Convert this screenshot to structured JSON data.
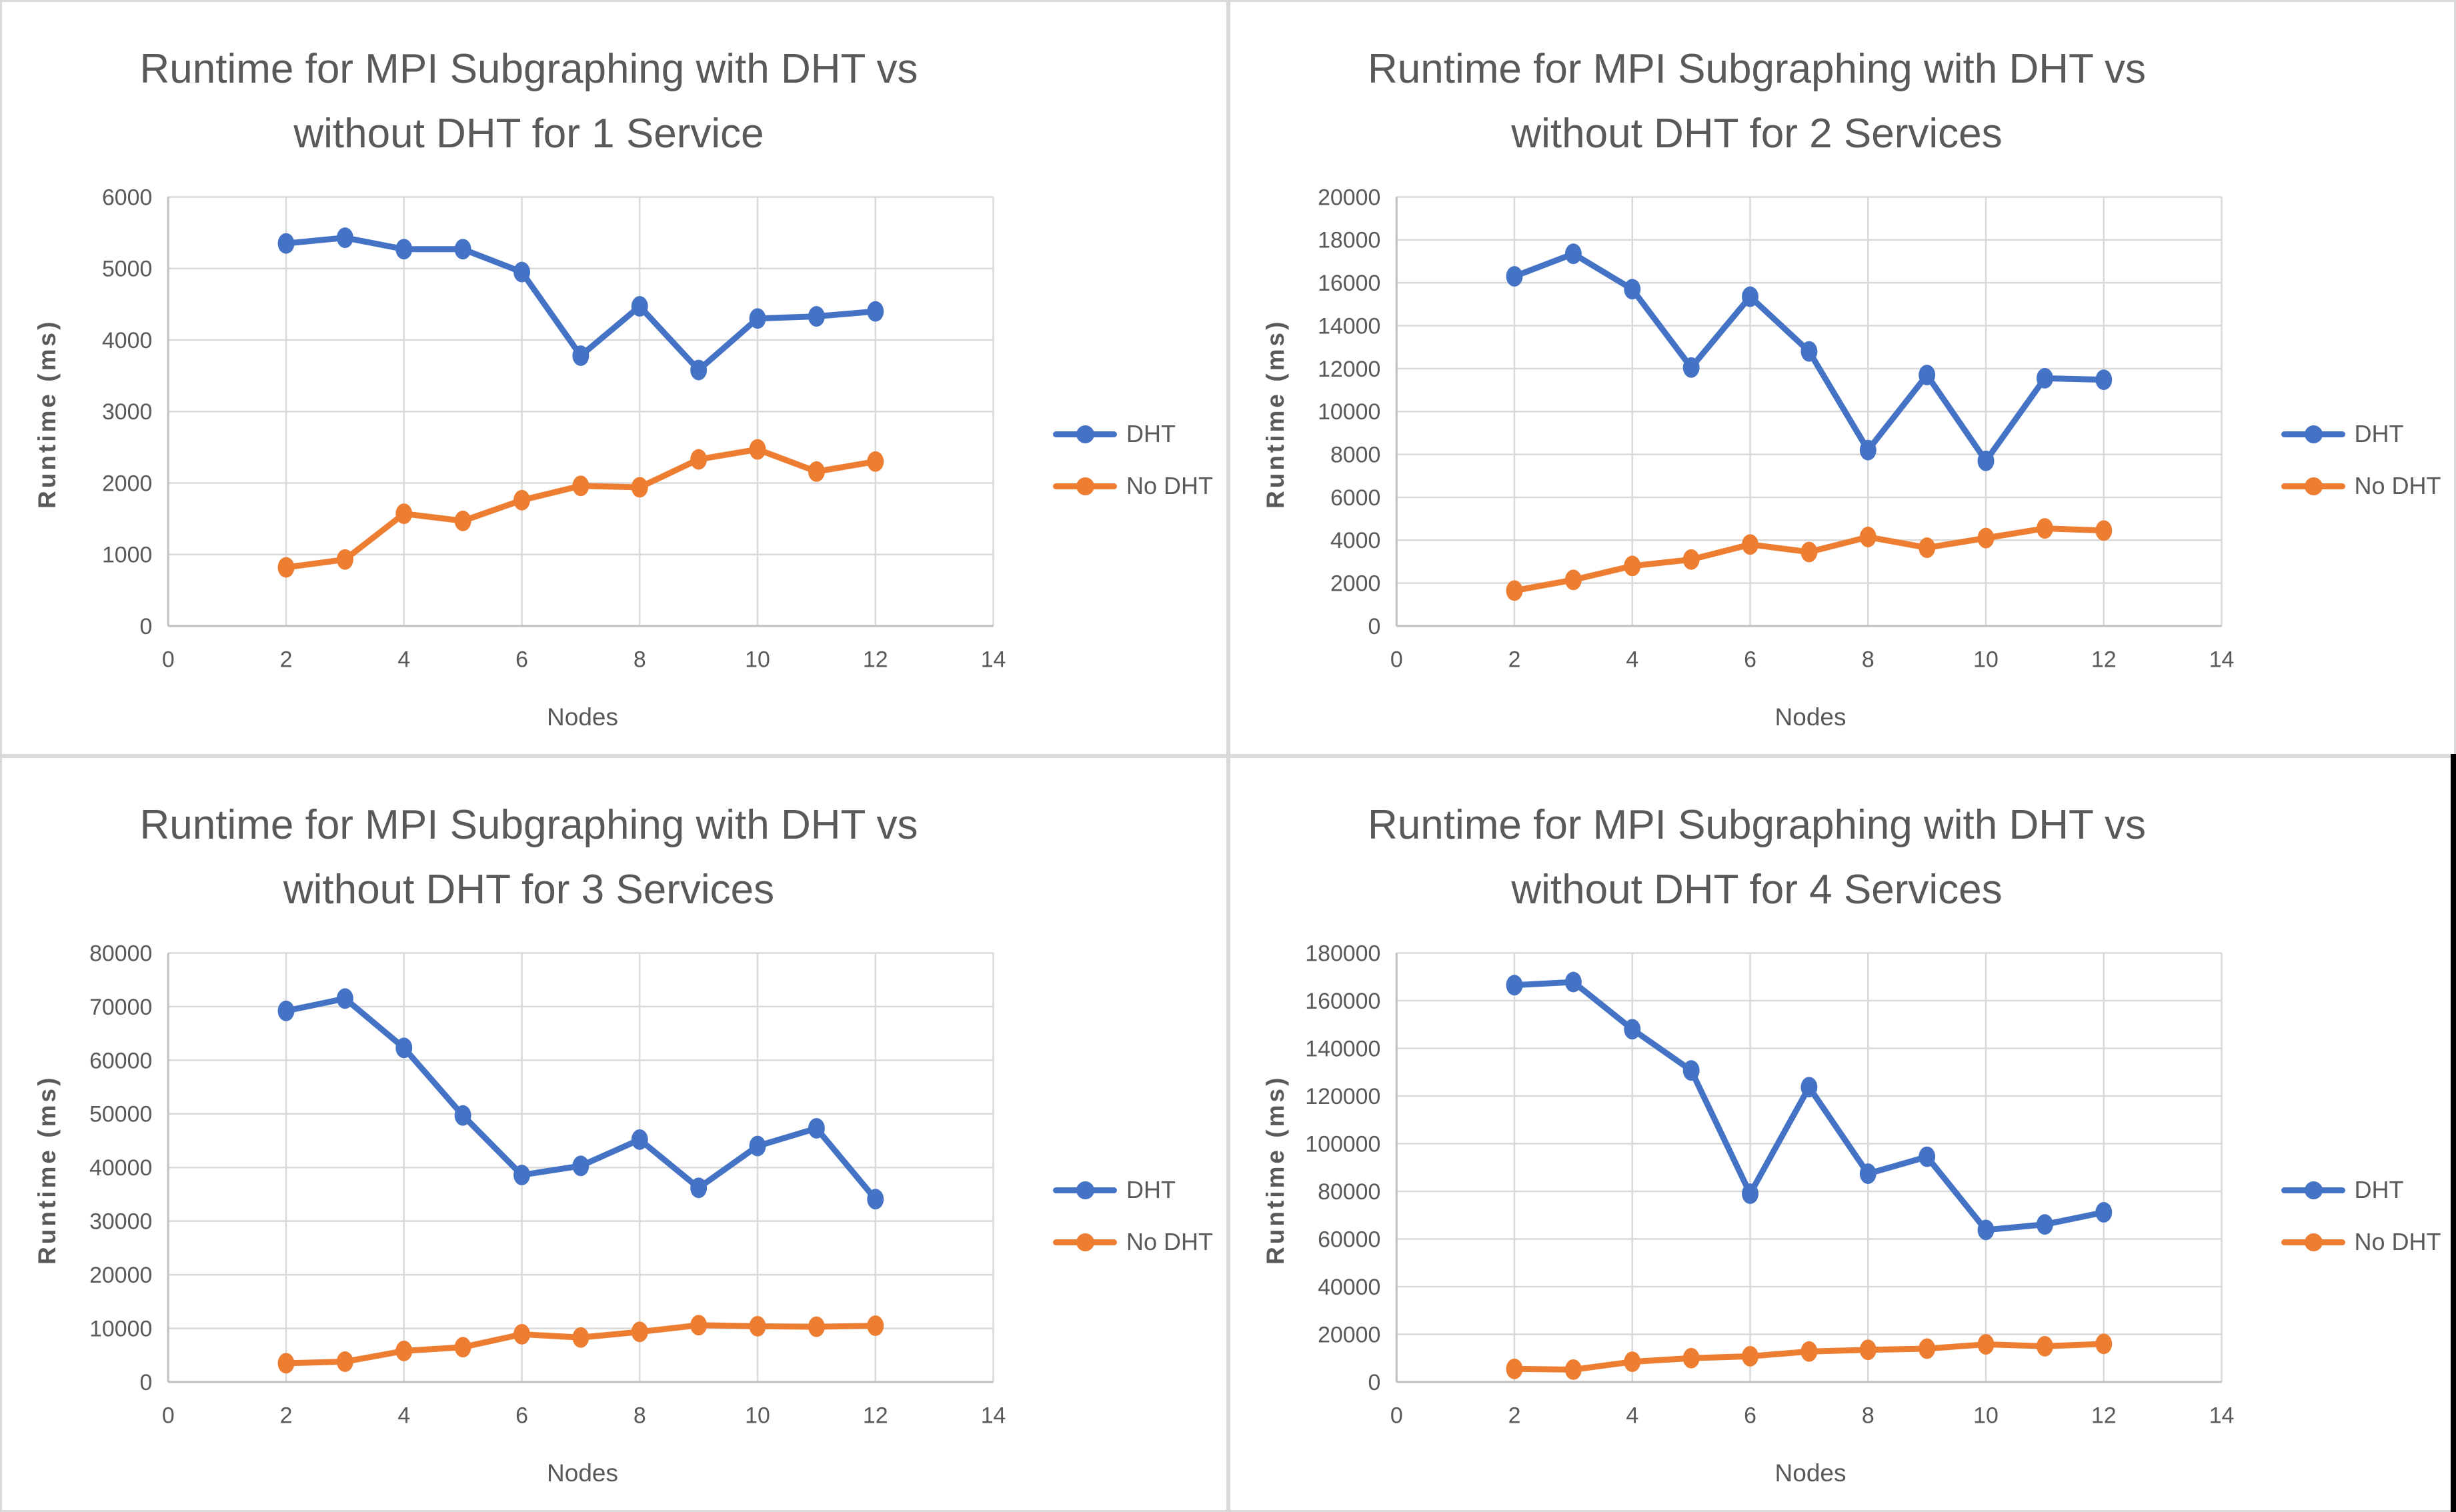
{
  "palette": {
    "dht_blue": "#4472C4",
    "no_dht_orange": "#ED7D31",
    "grid_color": "#D9D9D9",
    "axis_color": "#BFBFBF",
    "text_color": "#595959",
    "cell_border": "#D9D9D9",
    "background": "#FFFFFF",
    "edge_strip": "#000000"
  },
  "chart_data": [
    {
      "type": "line",
      "title": "Runtime for MPI Subgraphing with DHT vs without DHT for 1 Service",
      "title_line1": "Runtime for MPI Subgraphing with DHT vs",
      "title_line2": "without DHT for 1 Service",
      "xlabel": "Nodes",
      "ylabel": "Runtime (ms)",
      "xlim": [
        0,
        14
      ],
      "x_tick_step": 2,
      "ylim": [
        0,
        6000
      ],
      "y_tick_step": 1000,
      "grid": true,
      "legend_position": "right",
      "x": [
        2,
        3,
        4,
        5,
        6,
        7,
        8,
        9,
        10,
        11,
        12
      ],
      "series": [
        {
          "name": "DHT",
          "color": "#4472C4",
          "values": [
            5350,
            5430,
            5270,
            5270,
            4950,
            3780,
            4470,
            3580,
            4300,
            4330,
            4400
          ]
        },
        {
          "name": "No DHT",
          "color": "#ED7D31",
          "values": [
            820,
            930,
            1570,
            1470,
            1760,
            1960,
            1940,
            2330,
            2470,
            2160,
            2300
          ]
        }
      ]
    },
    {
      "type": "line",
      "title": "Runtime for MPI Subgraphing with DHT vs without DHT for 2 Services",
      "title_line1": "Runtime for MPI Subgraphing with DHT vs",
      "title_line2": "without DHT for 2 Services",
      "xlabel": "Nodes",
      "ylabel": "Runtime (ms)",
      "xlim": [
        0,
        14
      ],
      "x_tick_step": 2,
      "ylim": [
        0,
        20000
      ],
      "y_tick_step": 2000,
      "grid": true,
      "legend_position": "right",
      "x": [
        2,
        3,
        4,
        5,
        6,
        7,
        8,
        9,
        10,
        11,
        12
      ],
      "series": [
        {
          "name": "DHT",
          "color": "#4472C4",
          "values": [
            16300,
            17350,
            15700,
            12050,
            15350,
            12800,
            8200,
            11700,
            7700,
            11550,
            11480
          ]
        },
        {
          "name": "No DHT",
          "color": "#ED7D31",
          "values": [
            1650,
            2150,
            2800,
            3100,
            3800,
            3450,
            4150,
            3650,
            4100,
            4550,
            4450
          ]
        }
      ]
    },
    {
      "type": "line",
      "title": "Runtime for MPI Subgraphing with DHT vs without DHT for 3 Services",
      "title_line1": "Runtime for MPI Subgraphing with DHT vs",
      "title_line2": "without DHT for 3 Services",
      "xlabel": "Nodes",
      "ylabel": "Runtime (ms)",
      "xlim": [
        0,
        14
      ],
      "x_tick_step": 2,
      "ylim": [
        0,
        80000
      ],
      "y_tick_step": 10000,
      "grid": true,
      "legend_position": "right",
      "x": [
        2,
        3,
        4,
        5,
        6,
        7,
        8,
        9,
        10,
        11,
        12
      ],
      "series": [
        {
          "name": "DHT",
          "color": "#4472C4",
          "values": [
            69200,
            71500,
            62300,
            49700,
            38600,
            40300,
            45200,
            36200,
            44000,
            47300,
            34100
          ]
        },
        {
          "name": "No DHT",
          "color": "#ED7D31",
          "values": [
            3500,
            3800,
            5800,
            6500,
            8900,
            8300,
            9350,
            10600,
            10400,
            10300,
            10500
          ]
        }
      ]
    },
    {
      "type": "line",
      "title": "Runtime for MPI Subgraphing with DHT vs without DHT for 4 Services",
      "title_line1": "Runtime for MPI Subgraphing with DHT vs",
      "title_line2": "without DHT for 4 Services",
      "xlabel": "Nodes",
      "ylabel": "Runtime (ms)",
      "xlim": [
        0,
        14
      ],
      "x_tick_step": 2,
      "ylim": [
        0,
        180000
      ],
      "y_tick_step": 20000,
      "grid": true,
      "legend_position": "right",
      "x": [
        2,
        3,
        4,
        5,
        6,
        7,
        8,
        9,
        10,
        11,
        12
      ],
      "series": [
        {
          "name": "DHT",
          "color": "#4472C4",
          "values": [
            166500,
            167800,
            148000,
            130700,
            79000,
            123700,
            87400,
            94500,
            63800,
            66100,
            71200
          ]
        },
        {
          "name": "No DHT",
          "color": "#ED7D31",
          "values": [
            5500,
            5200,
            8500,
            10000,
            10800,
            12800,
            13500,
            14000,
            15800,
            15000,
            16000
          ]
        }
      ]
    }
  ]
}
